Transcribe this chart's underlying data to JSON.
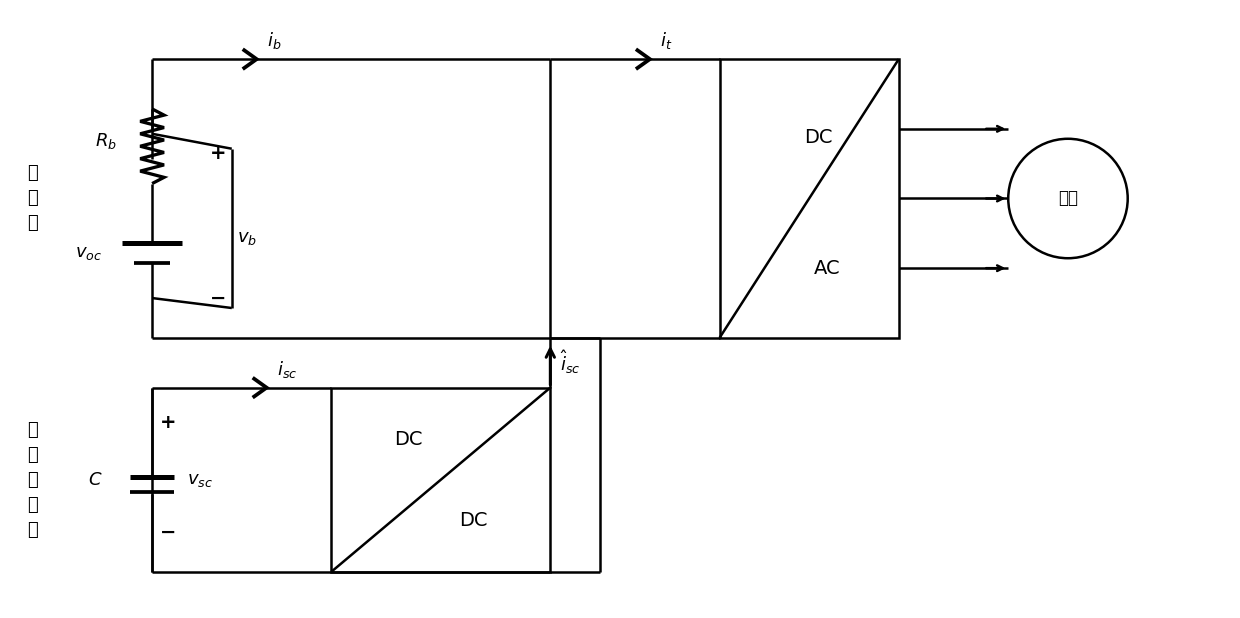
{
  "bg_color": "#ffffff",
  "line_color": "#000000",
  "line_width": 1.8,
  "fig_width": 12.4,
  "fig_height": 6.18,
  "label_battery": "蓄\n电\n池",
  "label_supercap": "超\n级\n电\n容\n器",
  "label_motor": "电机",
  "label_Rb": "$R_b$",
  "label_vb": "$v_b$",
  "label_voc": "$v_{oc}$",
  "label_ib": "$i_b$",
  "label_it": "$i_t$",
  "label_isc": "$i_{sc}$",
  "label_isc_hat": "$\\hat{i}_{sc}$",
  "label_vsc": "$v_{sc}$",
  "label_C": "$C$",
  "label_DC_top_top": "DC",
  "label_DC_top_bot": "AC",
  "label_DC_bot_top": "DC",
  "label_DC_bot_bot": "DC",
  "label_plus_bat": "+",
  "label_minus_bat": "−",
  "label_plus_sc": "+",
  "label_minus_sc": "−"
}
